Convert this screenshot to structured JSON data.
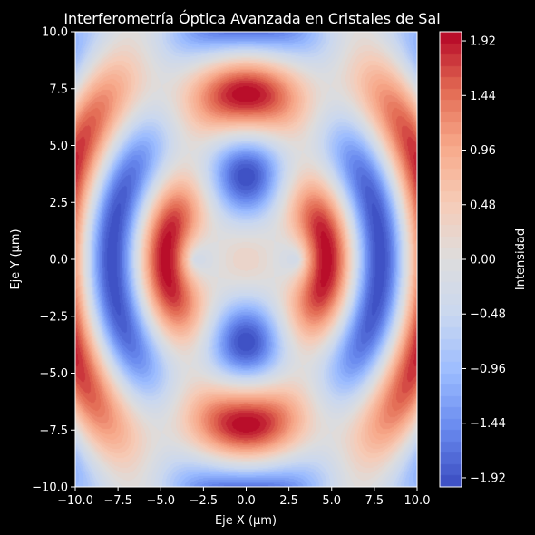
{
  "chart_data": {
    "type": "heatmap",
    "title": "Interferometría Óptica Avanzada en Cristales de Sal",
    "xlabel": "Eje X (µm)",
    "ylabel": "Eje Y (µm)",
    "colorbar_label": "Intensidad",
    "xlim": [
      -10,
      10
    ],
    "ylim": [
      -10,
      10
    ],
    "xticks": [
      "−10.0",
      "−7.5",
      "−5.0",
      "−2.5",
      "0.0",
      "2.5",
      "5.0",
      "7.5",
      "10.0"
    ],
    "yticks": [
      "10.0",
      "7.5",
      "5.0",
      "2.5",
      "0.0",
      "−2.5",
      "−5.0",
      "−7.5",
      "−10.0"
    ],
    "colorbar_ticks": [
      "1.92",
      "1.44",
      "0.96",
      "0.48",
      "0.00",
      "−0.48",
      "−0.96",
      "−1.44",
      "−1.92"
    ],
    "colorbar_range": [
      -2.0,
      2.0
    ],
    "colormap": "coolwarm",
    "colormap_stops": [
      "#3b4cc0",
      "#6788ee",
      "#9abbff",
      "#c9d7f0",
      "#dddddd",
      "#f6cbb7",
      "#f7a889",
      "#e26952",
      "#b40426"
    ],
    "field": "I = sin(R1) + sin(R2), R1 = distance to (-3, 0), R2 = distance to (3, 0)",
    "sources": [
      [
        -3,
        0
      ],
      [
        3,
        0
      ]
    ],
    "background": "#000000"
  }
}
